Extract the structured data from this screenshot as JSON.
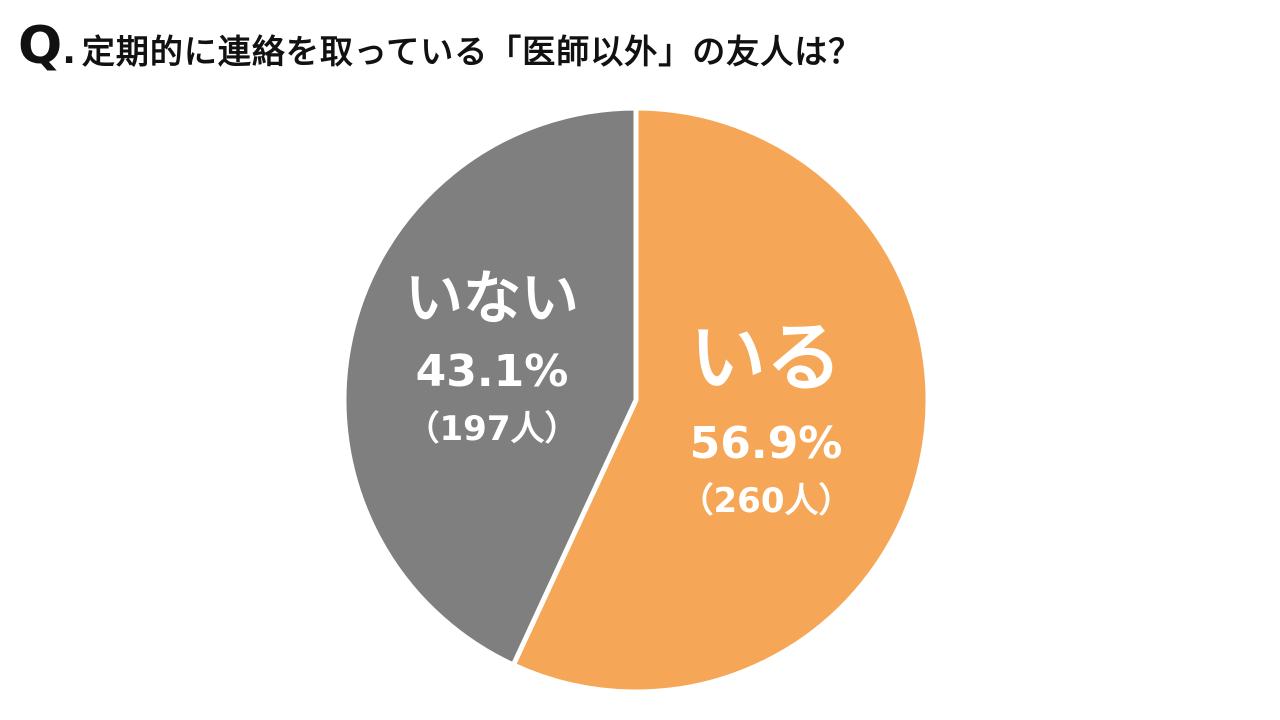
{
  "title": {
    "q": "Q",
    "dot": ".",
    "text": "定期的に連絡を取っている「医師以外」の友人は？"
  },
  "colors": {
    "iru": "#F5A656",
    "inai": "#7F7F7F",
    "separator": "#FFFFFF",
    "label_text": "#FFFFFF",
    "title_text": "#111111"
  },
  "chart_data": {
    "type": "pie",
    "title": "定期的に連絡を取っている「医師以外」の友人は？",
    "slices": [
      {
        "label": "いる",
        "percent_label": "56.9%",
        "count_label": "（260人）",
        "value": 56.9,
        "count": 260,
        "color": "#F5A656"
      },
      {
        "label": "いない",
        "percent_label": "43.1%",
        "count_label": "（197人）",
        "value": 43.1,
        "count": 197,
        "color": "#7F7F7F"
      }
    ],
    "start": "12 o'clock",
    "direction": "clockwise",
    "legend": "none"
  }
}
